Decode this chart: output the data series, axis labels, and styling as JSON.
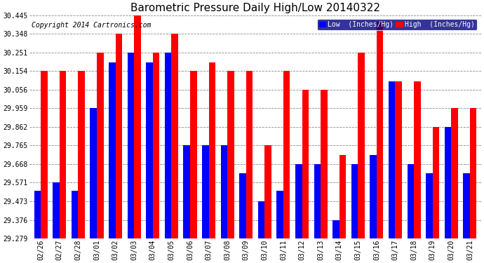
{
  "title": "Barometric Pressure Daily High/Low 20140322",
  "copyright": "Copyright 2014 Cartronics.com",
  "dates": [
    "02/26",
    "02/27",
    "02/28",
    "03/01",
    "03/02",
    "03/03",
    "03/04",
    "03/05",
    "03/06",
    "03/07",
    "03/08",
    "03/09",
    "03/10",
    "03/11",
    "03/12",
    "03/13",
    "03/14",
    "03/15",
    "03/16",
    "03/17",
    "03/18",
    "03/19",
    "03/20",
    "03/21"
  ],
  "high_vals": [
    30.154,
    30.154,
    30.154,
    30.251,
    30.348,
    30.445,
    30.251,
    30.348,
    30.154,
    30.2,
    30.154,
    30.154,
    29.765,
    30.154,
    30.056,
    30.056,
    29.716,
    30.251,
    30.41,
    30.1,
    30.1,
    29.862,
    29.959,
    29.959
  ],
  "low_vals": [
    29.53,
    29.571,
    29.53,
    29.959,
    30.2,
    30.251,
    30.2,
    30.251,
    29.765,
    29.765,
    29.765,
    29.62,
    29.473,
    29.53,
    29.668,
    29.668,
    29.376,
    29.668,
    29.716,
    30.1,
    29.668,
    29.62,
    29.862,
    29.62
  ],
  "low_color": "#0000ff",
  "high_color": "#ff0000",
  "bg_color": "#ffffff",
  "grid_color": "#888888",
  "ymin": 29.279,
  "ymax": 30.445,
  "yticks": [
    29.279,
    29.376,
    29.473,
    29.571,
    29.668,
    29.765,
    29.862,
    29.959,
    30.056,
    30.154,
    30.251,
    30.348,
    30.445
  ],
  "title_fontsize": 11,
  "copyright_fontsize": 7,
  "bar_width": 0.36,
  "legend_low_label": "Low  (Inches/Hg)",
  "legend_high_label": "High  (Inches/Hg)"
}
